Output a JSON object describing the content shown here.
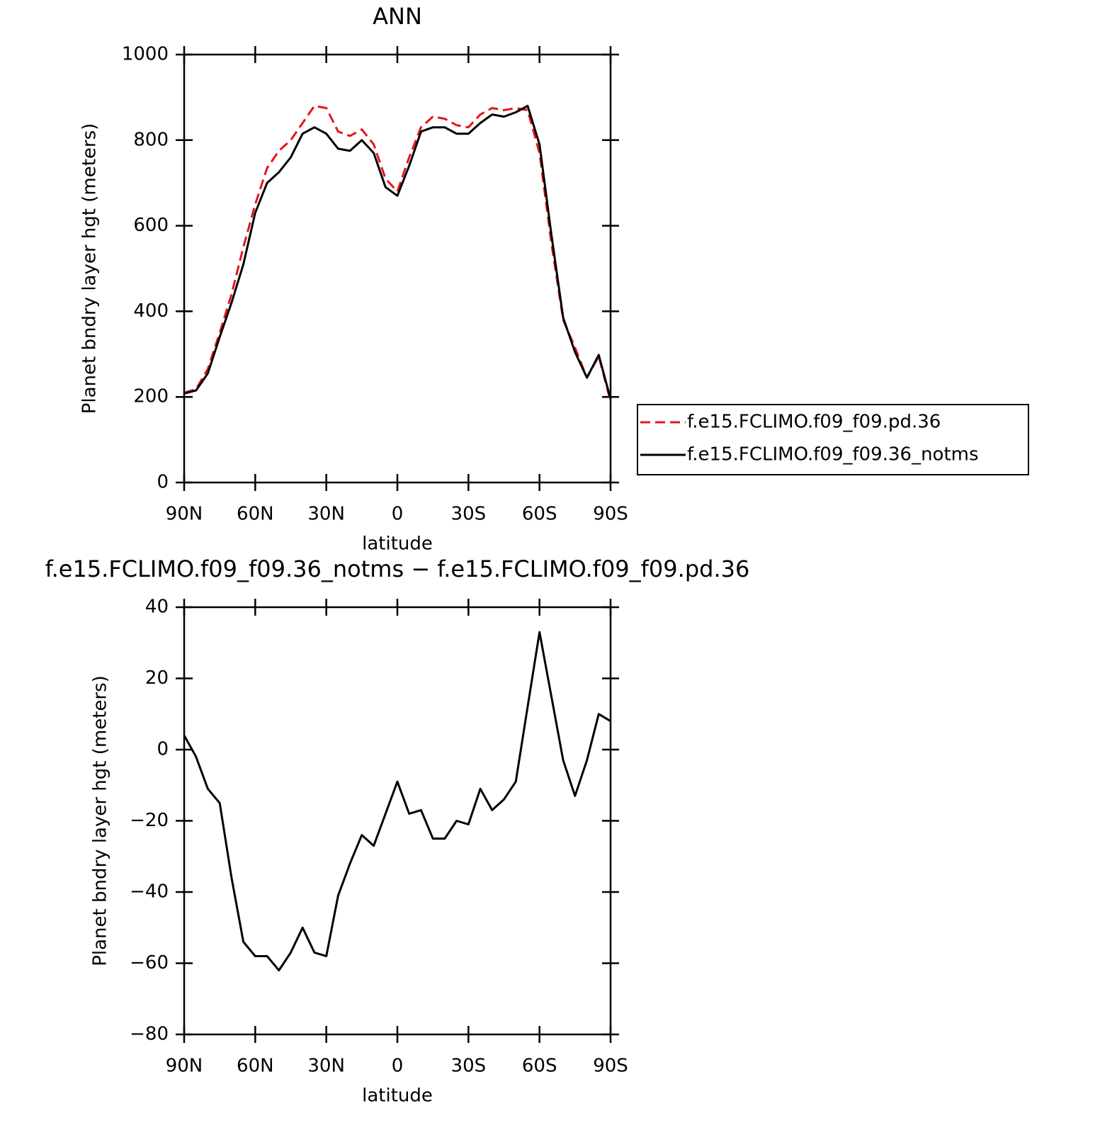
{
  "chart_data": [
    {
      "type": "line",
      "title": "ANN",
      "x_label": "latitude",
      "y_label": "Planet bndry layer hgt (meters)",
      "x": [
        90,
        85,
        80,
        75,
        70,
        65,
        60,
        55,
        50,
        45,
        40,
        35,
        30,
        25,
        20,
        15,
        10,
        5,
        0,
        -5,
        -10,
        -15,
        -20,
        -25,
        -30,
        -35,
        -40,
        -45,
        -50,
        -55,
        -60,
        -65,
        -70,
        -75,
        -80,
        -85,
        -90
      ],
      "series": [
        {
          "name": "f.e15.FCLIMO.f09_f09.pd.36",
          "color": "#e8141c",
          "line_style": "dashed",
          "values": [
            210,
            218,
            265,
            350,
            440,
            550,
            650,
            735,
            775,
            800,
            840,
            880,
            875,
            820,
            810,
            825,
            790,
            710,
            680,
            760,
            830,
            855,
            850,
            835,
            830,
            860,
            875,
            870,
            875,
            870,
            770,
            560,
            380,
            315,
            245,
            295,
            190
          ]
        },
        {
          "name": "f.e15.FCLIMO.f09_f09.36_notms",
          "color": "#000000",
          "line_style": "solid",
          "values": [
            208,
            215,
            255,
            340,
            420,
            510,
            630,
            700,
            725,
            760,
            815,
            830,
            815,
            780,
            775,
            800,
            770,
            690,
            670,
            740,
            820,
            830,
            830,
            815,
            815,
            840,
            860,
            855,
            865,
            880,
            790,
            580,
            385,
            305,
            245,
            298,
            195
          ]
        }
      ],
      "xlim": [
        90,
        -90
      ],
      "xticks": [
        {
          "value": 90,
          "label": "90N"
        },
        {
          "value": 60,
          "label": "60N"
        },
        {
          "value": 30,
          "label": "30N"
        },
        0,
        {
          "value": -30,
          "label": "30S"
        },
        {
          "value": -60,
          "label": "60S"
        },
        {
          "value": -90,
          "label": "90S"
        }
      ],
      "ylim": [
        0,
        1000
      ],
      "yticks": [
        0,
        200,
        400,
        600,
        800,
        1000
      ],
      "legend_position": "right"
    },
    {
      "type": "line",
      "title": "f.e15.FCLIMO.f09_f09.36_notms − f.e15.FCLIMO.f09_f09.pd.36",
      "x_label": "latitude",
      "y_label": "Planet bndry layer hgt (meters)",
      "x": [
        90,
        85,
        80,
        75,
        70,
        65,
        60,
        55,
        50,
        45,
        40,
        35,
        30,
        25,
        20,
        15,
        10,
        5,
        0,
        -5,
        -10,
        -15,
        -20,
        -25,
        -30,
        -35,
        -40,
        -45,
        -50,
        -55,
        -60,
        -65,
        -70,
        -75,
        -80,
        -85,
        -90
      ],
      "values": [
        4,
        -2,
        -11,
        -15,
        -36,
        -54,
        -58,
        -58,
        -62,
        -57,
        -50,
        -57,
        -58,
        -41,
        -32,
        -24,
        -27,
        -18,
        -9,
        -18,
        -17,
        -25,
        -25,
        -20,
        -21,
        -11,
        -17,
        -14,
        -9,
        12,
        33,
        15,
        -3,
        -13,
        -3,
        10,
        8
      ],
      "color": "#000000",
      "xlim": [
        90,
        -90
      ],
      "xticks": [
        {
          "value": 90,
          "label": "90N"
        },
        {
          "value": 60,
          "label": "60N"
        },
        {
          "value": 30,
          "label": "30N"
        },
        0,
        {
          "value": -30,
          "label": "30S"
        },
        {
          "value": -60,
          "label": "60S"
        },
        {
          "value": -90,
          "label": "90S"
        }
      ],
      "ylim": [
        -80,
        40
      ],
      "yticks": [
        {
          "value": -80,
          "label": "−80"
        },
        {
          "value": -60,
          "label": "−60"
        },
        {
          "value": -40,
          "label": "−40"
        },
        {
          "value": -20,
          "label": "−20"
        },
        0,
        20,
        40
      ]
    }
  ]
}
